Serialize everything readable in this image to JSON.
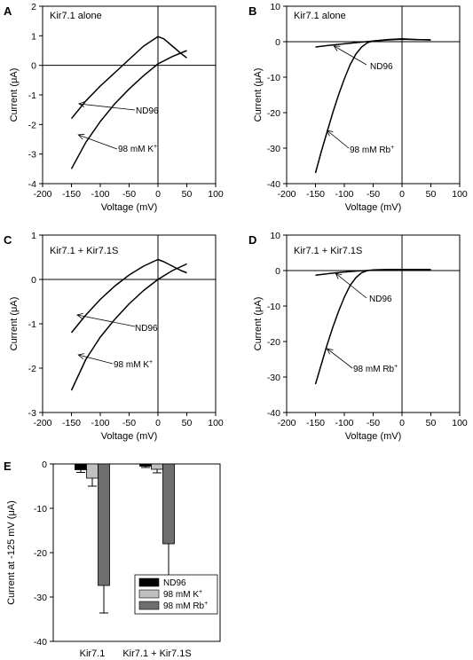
{
  "chart_data": [
    {
      "panel": "A",
      "type": "line",
      "title": "Kir7.1 alone",
      "xlabel": "Voltage (mV)",
      "ylabel": "Current (μA)",
      "xlim": [
        -200,
        100
      ],
      "ylim": [
        -4,
        2
      ],
      "xticks": [
        -200,
        -150,
        -100,
        -50,
        0,
        50,
        100
      ],
      "yticks": [
        -4,
        -3,
        -2,
        -1,
        0,
        1,
        2
      ],
      "series": [
        {
          "name": "ND96",
          "x": [
            -150,
            -125,
            -100,
            -75,
            -50,
            -25,
            0,
            10,
            25,
            40,
            50
          ],
          "y": [
            -1.8,
            -1.2,
            -0.7,
            -0.25,
            0.2,
            0.65,
            0.97,
            0.9,
            0.65,
            0.4,
            0.25
          ]
        },
        {
          "name": "98 mM K+",
          "x": [
            -150,
            -125,
            -100,
            -75,
            -50,
            -25,
            0,
            25,
            50
          ],
          "y": [
            -3.5,
            -2.6,
            -1.9,
            -1.3,
            -0.8,
            -0.35,
            0.05,
            0.3,
            0.5
          ]
        }
      ],
      "annotations": [
        {
          "label": "ND96",
          "target": [
            -137,
            -1.3
          ]
        },
        {
          "label": "98 mM K",
          "sup": "+",
          "target": [
            -138,
            -2.35
          ]
        }
      ]
    },
    {
      "panel": "B",
      "type": "line",
      "title": "Kir7.1 alone",
      "xlabel": "Voltage (mV)",
      "ylabel": "Current (μA)",
      "xlim": [
        -200,
        100
      ],
      "ylim": [
        -40,
        10
      ],
      "xticks": [
        -200,
        -150,
        -100,
        -50,
        0,
        50,
        100
      ],
      "yticks": [
        -40,
        -30,
        -20,
        -10,
        0,
        10
      ],
      "series": [
        {
          "name": "ND96",
          "x": [
            -150,
            -125,
            -100,
            -75,
            -50,
            -25,
            0,
            25,
            50
          ],
          "y": [
            -1.5,
            -1.0,
            -0.6,
            -0.2,
            0.2,
            0.5,
            0.7,
            0.6,
            0.5
          ]
        },
        {
          "name": "98 mM Rb+",
          "x": [
            -150,
            -140,
            -130,
            -120,
            -110,
            -100,
            -90,
            -80,
            -70,
            -60,
            -50,
            -25,
            0,
            25,
            50
          ],
          "y": [
            -37,
            -31,
            -25.5,
            -20,
            -15,
            -10.5,
            -6.5,
            -3.5,
            -1.5,
            -0.3,
            0.2,
            0.6,
            0.8,
            0.6,
            0.5
          ]
        }
      ],
      "annotations": [
        {
          "label": "ND96",
          "target": [
            -118,
            -1.2
          ]
        },
        {
          "label": "98 mM Rb",
          "sup": "+",
          "target": [
            -130,
            -25
          ]
        }
      ]
    },
    {
      "panel": "C",
      "type": "line",
      "title": "Kir7.1 + Kir7.1S",
      "xlabel": "Voltage (mV)",
      "ylabel": "Current (μA)",
      "xlim": [
        -200,
        100
      ],
      "ylim": [
        -3,
        1
      ],
      "xticks": [
        -200,
        -150,
        -100,
        -50,
        0,
        50,
        100
      ],
      "yticks": [
        -3,
        -2,
        -1,
        0,
        1
      ],
      "series": [
        {
          "name": "ND96",
          "x": [
            -150,
            -125,
            -100,
            -75,
            -50,
            -25,
            0,
            10,
            25,
            40,
            50
          ],
          "y": [
            -1.2,
            -0.8,
            -0.45,
            -0.15,
            0.1,
            0.3,
            0.45,
            0.4,
            0.3,
            0.2,
            0.15
          ]
        },
        {
          "name": "98 mM K+",
          "x": [
            -150,
            -125,
            -100,
            -75,
            -50,
            -25,
            0,
            25,
            50
          ],
          "y": [
            -2.5,
            -1.8,
            -1.3,
            -0.9,
            -0.55,
            -0.25,
            0.0,
            0.2,
            0.35
          ]
        }
      ],
      "annotations": [
        {
          "label": "ND96",
          "target": [
            -140,
            -0.8
          ]
        },
        {
          "label": "98 mM K",
          "sup": "+",
          "target": [
            -138,
            -1.7
          ]
        }
      ]
    },
    {
      "panel": "D",
      "type": "line",
      "title": "Kir7.1 + Kir7.1S",
      "xlabel": "Voltage (mV)",
      "ylabel": "Current (μA)",
      "xlim": [
        -200,
        100
      ],
      "ylim": [
        -40,
        10
      ],
      "xticks": [
        -200,
        -150,
        -100,
        -50,
        0,
        50,
        100
      ],
      "yticks": [
        -40,
        -30,
        -20,
        -10,
        0,
        10
      ],
      "series": [
        {
          "name": "ND96",
          "x": [
            -150,
            -125,
            -100,
            -75,
            -50,
            -25,
            0,
            25,
            50
          ],
          "y": [
            -1.3,
            -0.8,
            -0.4,
            -0.1,
            0.1,
            0.2,
            0.3,
            0.3,
            0.3
          ]
        },
        {
          "name": "98 mM Rb+",
          "x": [
            -150,
            -140,
            -130,
            -120,
            -110,
            -100,
            -90,
            -80,
            -70,
            -60,
            -50,
            -25,
            0,
            25,
            50
          ],
          "y": [
            -32,
            -26.5,
            -21,
            -16,
            -11.5,
            -7.5,
            -4.2,
            -2,
            -0.6,
            0,
            0.2,
            0.3,
            0.3,
            0.3,
            0.3
          ]
        }
      ],
      "annotations": [
        {
          "label": "ND96",
          "target": [
            -115,
            -0.8
          ]
        },
        {
          "label": "98 mM Rb",
          "sup": "+",
          "target": [
            -130,
            -22
          ]
        }
      ]
    },
    {
      "panel": "E",
      "type": "bar",
      "xlabel": "",
      "ylabel": "Current at -125 mV (μA)",
      "ylim": [
        -40,
        0
      ],
      "yticks": [
        -40,
        -30,
        -20,
        -10,
        0
      ],
      "categories": [
        "Kir7.1",
        "Kir7.1 + Kir7.1S"
      ],
      "series": [
        {
          "name": "ND96",
          "values": [
            -1.3,
            -0.5
          ],
          "errors": [
            0.6,
            0.3
          ],
          "color": "#000000"
        },
        {
          "name": "98 mM K+",
          "values": [
            -3.2,
            -1.2
          ],
          "errors": [
            1.8,
            0.8
          ],
          "color": "#c0c0c0"
        },
        {
          "name": "98 mM Rb+",
          "values": [
            -27.4,
            -18.0
          ],
          "errors": [
            6.2,
            10.2
          ],
          "color": "#6e6e6e"
        }
      ],
      "legend_position": "bottom-right"
    }
  ]
}
